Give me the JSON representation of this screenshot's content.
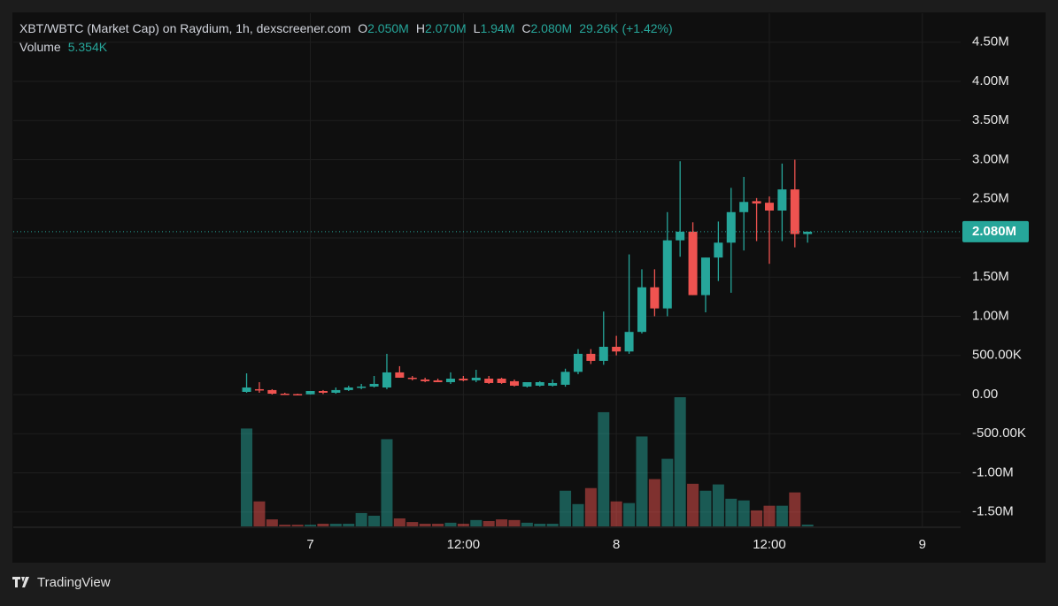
{
  "chart_data": {
    "type": "candlestick",
    "title": "XBT/WBTC (Market Cap) on Raydium, 1h, dexscreener.com",
    "ohlc_legend": [
      {
        "key": "O",
        "value": "2.050M"
      },
      {
        "key": "H",
        "value": "2.070M"
      },
      {
        "key": "L",
        "value": "1.94M"
      },
      {
        "key": "C",
        "value": "2.080M"
      }
    ],
    "change": "29.26K (+1.42%)",
    "volume_title": "Volume",
    "volume_value": "5.354K",
    "x": [
      -5,
      -4,
      -3,
      -2,
      -1,
      0,
      1,
      2,
      3,
      4,
      5,
      6,
      7,
      8,
      9,
      10,
      11,
      12,
      13,
      14,
      15,
      16,
      17,
      18,
      19,
      20,
      21,
      22,
      23,
      24,
      25,
      26,
      27,
      28,
      29,
      30,
      31,
      32,
      33,
      34,
      35,
      36,
      37,
      38,
      39
    ],
    "open": [
      34000,
      68000,
      57000,
      11000,
      6000,
      3000,
      45000,
      23000,
      57000,
      90000,
      102000,
      90000,
      283000,
      215000,
      192000,
      181000,
      158000,
      203000,
      181000,
      203000,
      203000,
      170000,
      102000,
      113000,
      113000,
      125000,
      290000,
      520000,
      430000,
      610000,
      550000,
      800000,
      1370000,
      1100000,
      1970000,
      2080000,
      1270000,
      1750000,
      1940000,
      2330000,
      2470000,
      2450000,
      2350000,
      2620000,
      2050000
    ],
    "high": [
      271000,
      158000,
      68000,
      23000,
      11000,
      45000,
      57000,
      90000,
      113000,
      136000,
      237000,
      520000,
      362000,
      237000,
      215000,
      203000,
      283000,
      237000,
      316000,
      237000,
      215000,
      192000,
      158000,
      170000,
      192000,
      330000,
      580000,
      580000,
      1060000,
      750000,
      1790000,
      1600000,
      1600000,
      2330000,
      2980000,
      2200000,
      1750000,
      2210000,
      2640000,
      2780000,
      2510000,
      2530000,
      2950000,
      3000000,
      2070000
    ],
    "low": [
      23000,
      23000,
      0,
      0,
      0,
      0,
      6000,
      11000,
      45000,
      68000,
      90000,
      68000,
      215000,
      181000,
      158000,
      158000,
      136000,
      170000,
      158000,
      136000,
      136000,
      102000,
      90000,
      102000,
      102000,
      100000,
      260000,
      390000,
      380000,
      500000,
      520000,
      780000,
      1000000,
      1000000,
      1760000,
      1270000,
      1050000,
      1450000,
      1300000,
      1840000,
      1960000,
      1670000,
      1960000,
      1880000,
      1940000
    ],
    "close": [
      90000,
      57000,
      11000,
      6000,
      3000,
      45000,
      23000,
      57000,
      90000,
      102000,
      136000,
      283000,
      215000,
      203000,
      170000,
      158000,
      203000,
      181000,
      215000,
      147000,
      147000,
      113000,
      158000,
      158000,
      147000,
      290000,
      520000,
      430000,
      610000,
      550000,
      800000,
      1370000,
      1100000,
      1970000,
      2080000,
      1270000,
      1750000,
      1940000,
      2330000,
      2460000,
      2440000,
      2350000,
      2620000,
      2050000,
      2080000
    ],
    "volume": [
      294000,
      75000,
      21000,
      5000,
      5000,
      5000,
      8000,
      8000,
      8000,
      40000,
      32000,
      262000,
      24000,
      13000,
      8000,
      8000,
      11000,
      8000,
      19000,
      16000,
      21000,
      19000,
      11000,
      8000,
      8000,
      107000,
      67000,
      115000,
      343000,
      75000,
      70000,
      270000,
      142000,
      203000,
      388000,
      128000,
      107000,
      126000,
      83000,
      78000,
      48000,
      62000,
      62000,
      102000,
      5354
    ],
    "up_color": "#26a69a",
    "down_color": "#ef5350",
    "xlim": [
      -23.3,
      51
    ],
    "xticks": [
      {
        "value": 0,
        "label": "7"
      },
      {
        "value": 12,
        "label": "12:00"
      },
      {
        "value": 24,
        "label": "8"
      },
      {
        "value": 36,
        "label": "12:00"
      },
      {
        "value": 48,
        "label": "9"
      }
    ],
    "ylim": [
      -1684000,
      4870000
    ],
    "yticks": [
      {
        "value": 4500000,
        "label": "4.50M"
      },
      {
        "value": 4000000,
        "label": "4.00M"
      },
      {
        "value": 3500000,
        "label": "3.50M"
      },
      {
        "value": 3000000,
        "label": "3.00M"
      },
      {
        "value": 2500000,
        "label": "2.50M"
      },
      {
        "value": 2000000,
        "label": "2.00M"
      },
      {
        "value": 1500000,
        "label": "1.50M"
      },
      {
        "value": 1000000,
        "label": "1.00M"
      },
      {
        "value": 500000,
        "label": "500.00K"
      },
      {
        "value": 0,
        "label": "0.00"
      },
      {
        "value": -500000,
        "label": "-500.00K"
      },
      {
        "value": -1000000,
        "label": "-1.00M"
      },
      {
        "value": -1500000,
        "label": "-1.50M"
      }
    ],
    "grid": true
  },
  "footer": {
    "brand": "TradingView"
  }
}
